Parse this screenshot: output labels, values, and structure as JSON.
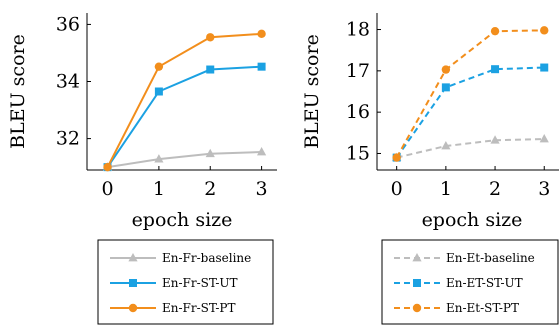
{
  "chart_data": [
    {
      "type": "line",
      "xlabel": "epoch size",
      "ylabel": "BLEU score",
      "x": [
        0,
        1,
        2,
        3
      ],
      "xlim": [
        -0.4,
        3.3
      ],
      "ylim": [
        30.9,
        36.4
      ],
      "yticks": [
        32,
        34,
        36
      ],
      "grid": false,
      "legend_position": "bottom",
      "series": [
        {
          "name": "En-Fr-baseline",
          "values": [
            31.0,
            31.28,
            31.47,
            31.53
          ],
          "color": "#bdbdbd",
          "marker": "triangle",
          "dash": "solid"
        },
        {
          "name": "En-Fr-ST-UT",
          "values": [
            31.0,
            33.65,
            34.42,
            34.52
          ],
          "color": "#1ba1e2",
          "marker": "square",
          "dash": "solid"
        },
        {
          "name": "En-Fr-ST-PT",
          "values": [
            31.0,
            34.52,
            35.55,
            35.67
          ],
          "color": "#f28e1c",
          "marker": "circle",
          "dash": "solid"
        }
      ]
    },
    {
      "type": "line",
      "xlabel": "epoch size",
      "ylabel": "BLEU score",
      "x": [
        0,
        1,
        2,
        3
      ],
      "xlim": [
        -0.4,
        3.3
      ],
      "ylim": [
        14.6,
        18.4
      ],
      "yticks": [
        15,
        16,
        17,
        18
      ],
      "grid": false,
      "legend_position": "bottom",
      "series": [
        {
          "name": "En-Et-baseline",
          "values": [
            14.9,
            15.18,
            15.32,
            15.35
          ],
          "color": "#bdbdbd",
          "marker": "triangle",
          "dash": "dashed"
        },
        {
          "name": "En-ET-ST-UT",
          "values": [
            14.9,
            16.6,
            17.04,
            17.08
          ],
          "color": "#1ba1e2",
          "marker": "square",
          "dash": "dashed"
        },
        {
          "name": "En-Et-ST-PT",
          "values": [
            14.9,
            17.03,
            17.96,
            17.98
          ],
          "color": "#f28e1c",
          "marker": "circle",
          "dash": "dashed"
        }
      ]
    }
  ]
}
